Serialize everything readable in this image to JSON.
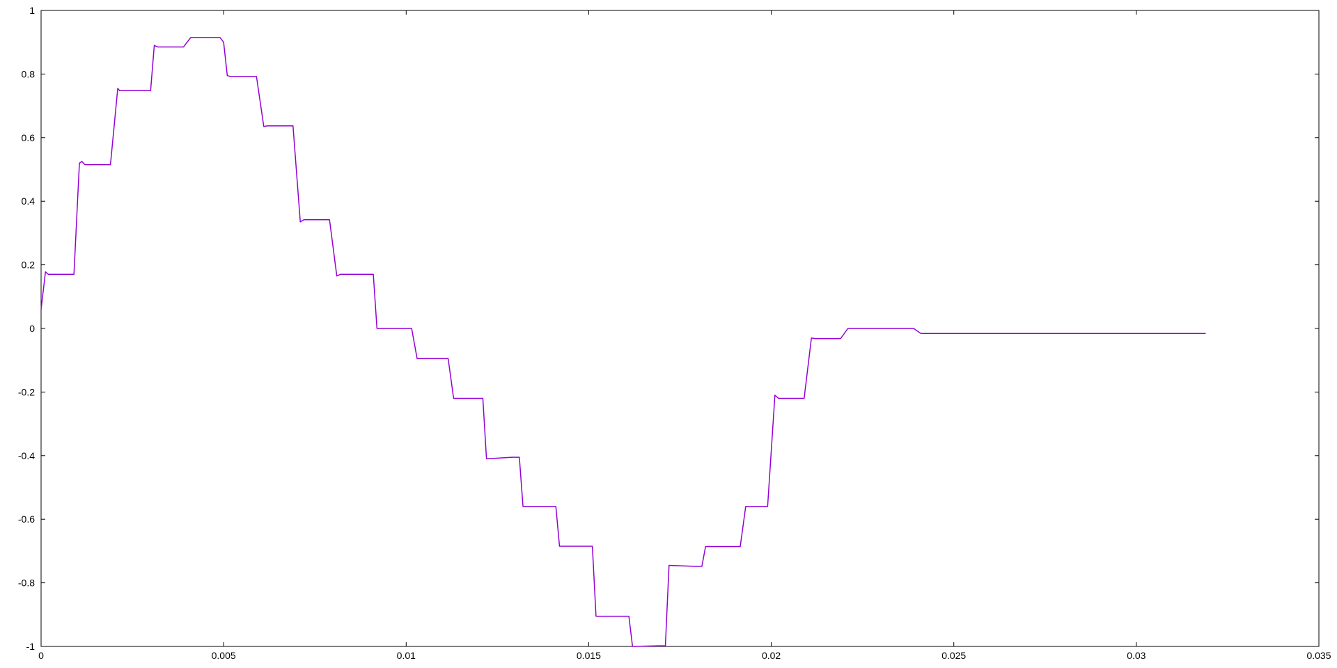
{
  "chart_data": {
    "type": "line",
    "title": "",
    "xlabel": "",
    "ylabel": "",
    "xlim": [
      0,
      0.035
    ],
    "ylim": [
      -1,
      1
    ],
    "grid": false,
    "legend": "none",
    "x_ticks": [
      0,
      0.005,
      0.01,
      0.015,
      0.02,
      0.025,
      0.03,
      0.035
    ],
    "x_tick_labels": [
      "0",
      "0.005",
      "0.01",
      "0.015",
      "0.02",
      "0.025",
      "0.03",
      "0.035"
    ],
    "y_ticks": [
      -1,
      -0.8,
      -0.6,
      -0.4,
      -0.2,
      0,
      0.2,
      0.4,
      0.6,
      0.8,
      1
    ],
    "y_tick_labels": [
      "-1",
      "-0.8",
      "-0.6",
      "-0.4",
      "-0.2",
      "0",
      "0.2",
      "0.4",
      "0.6",
      "0.8",
      "1"
    ],
    "series": [
      {
        "color": "#9400d3",
        "x": [
          0,
          0.00012,
          0.0002,
          0.0003,
          0.0009,
          0.00105,
          0.00112,
          0.0012,
          0.0019,
          0.0021,
          0.00215,
          0.0022,
          0.003,
          0.0031,
          0.0032,
          0.0033,
          0.0039,
          0.0041,
          0.0042,
          0.0049,
          0.005,
          0.0051,
          0.0052,
          0.0059,
          0.0061,
          0.0062,
          0.0069,
          0.0071,
          0.0072,
          0.0079,
          0.0081,
          0.0082,
          0.0089,
          0.0091,
          0.0092,
          0.0099,
          0.01015,
          0.0103,
          0.0109,
          0.01115,
          0.0113,
          0.0119,
          0.0121,
          0.0122,
          0.0129,
          0.0131,
          0.0132,
          0.0139,
          0.0141,
          0.0142,
          0.0149,
          0.0151,
          0.0152,
          0.0159,
          0.0161,
          0.0162,
          0.0169,
          0.0171,
          0.0172,
          0.0179,
          0.0181,
          0.0182,
          0.0189,
          0.01915,
          0.0193,
          0.0199,
          0.0201,
          0.0202,
          0.0209,
          0.0211,
          0.0212,
          0.0219,
          0.0221,
          0.0222,
          0.0239,
          0.0241,
          0.0319
        ],
        "y": [
          0.06,
          0.178,
          0.17,
          0.17,
          0.17,
          0.52,
          0.525,
          0.515,
          0.515,
          0.755,
          0.748,
          0.748,
          0.748,
          0.89,
          0.885,
          0.885,
          0.885,
          0.915,
          0.915,
          0.915,
          0.9,
          0.795,
          0.792,
          0.792,
          0.635,
          0.637,
          0.637,
          0.335,
          0.342,
          0.342,
          0.165,
          0.17,
          0.17,
          0.17,
          0.0,
          0.0,
          0.0,
          -0.095,
          -0.095,
          -0.095,
          -0.22,
          -0.22,
          -0.22,
          -0.41,
          -0.405,
          -0.405,
          -0.56,
          -0.56,
          -0.56,
          -0.685,
          -0.685,
          -0.685,
          -0.905,
          -0.905,
          -0.905,
          -1.0,
          -0.998,
          -0.998,
          -0.745,
          -0.748,
          -0.748,
          -0.686,
          -0.686,
          -0.686,
          -0.56,
          -0.56,
          -0.21,
          -0.22,
          -0.22,
          -0.03,
          -0.032,
          -0.032,
          0.0,
          0.0,
          0.0,
          -0.016,
          -0.016
        ]
      }
    ]
  }
}
